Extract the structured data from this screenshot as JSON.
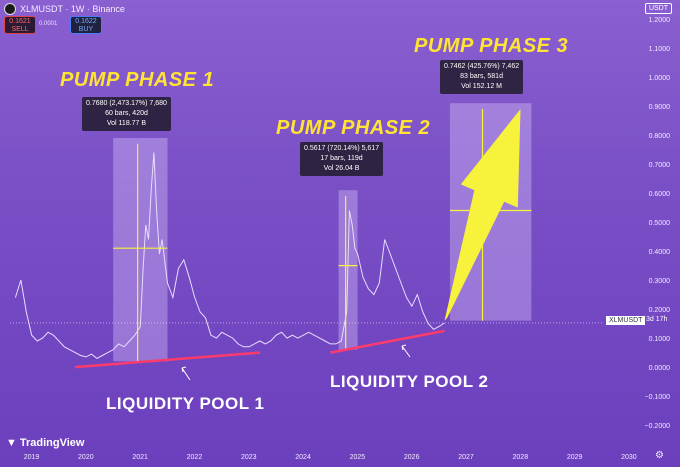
{
  "header": {
    "pair": "XLMUSDT · 1W · Binance",
    "sell_price": "0.1621",
    "sell_label": "SELL",
    "spread": "0.0001",
    "buy_price": "0.1622",
    "buy_label": "BUY",
    "currency": "USDT"
  },
  "annotations": {
    "phase1": "PUMP PHASE 1",
    "phase2": "PUMP PHASE 2",
    "phase3": "PUMP PHASE 3",
    "pool1": "LIQUIDITY POOL 1",
    "pool2": "LIQUIDITY POOL 2"
  },
  "tooltips": {
    "t1": [
      "0.7680 (2,473.17%) 7,680",
      "60 bars, 420d",
      "Vol 118.77 B"
    ],
    "t2": [
      "0.5617 (720.14%) 5,617",
      "17 bars, 119d",
      "Vol 26.04 B"
    ],
    "t3": [
      "0.7462 (425.76%) 7,462",
      "83 bars, 581d",
      "Vol 152.12 M"
    ]
  },
  "price_tag": {
    "symbol": "XLMUSDT",
    "countdown": "3d 17h"
  },
  "branding": "TradingView",
  "chart_data": {
    "type": "line",
    "x_ticks": [
      "2019",
      "2020",
      "2021",
      "2022",
      "2023",
      "2024",
      "2025",
      "2026",
      "2027",
      "2028",
      "2029",
      "2030"
    ],
    "y_ticks": [
      "1.2000",
      "1.1000",
      "1.0000",
      "0.9000",
      "0.8000",
      "0.7000",
      "0.6000",
      "0.5000",
      "0.4000",
      "0.3000",
      "0.2000",
      "0.1000",
      "0.0000",
      "−0.1000",
      "−0.2000"
    ],
    "x": [
      2018.7,
      2018.8,
      2018.9,
      2019.0,
      2019.1,
      2019.2,
      2019.3,
      2019.4,
      2019.5,
      2019.6,
      2019.7,
      2019.8,
      2019.9,
      2020.0,
      2020.1,
      2020.2,
      2020.3,
      2020.4,
      2020.5,
      2020.6,
      2020.7,
      2020.8,
      2020.9,
      2021.0,
      2021.05,
      2021.1,
      2021.15,
      2021.2,
      2021.25,
      2021.3,
      2021.35,
      2021.4,
      2021.5,
      2021.6,
      2021.7,
      2021.8,
      2021.9,
      2022.0,
      2022.1,
      2022.2,
      2022.3,
      2022.4,
      2022.5,
      2022.6,
      2022.7,
      2022.8,
      2022.9,
      2023.0,
      2023.1,
      2023.2,
      2023.3,
      2023.4,
      2023.5,
      2023.6,
      2023.7,
      2023.8,
      2023.9,
      2024.0,
      2024.1,
      2024.2,
      2024.3,
      2024.4,
      2024.5,
      2024.6,
      2024.7,
      2024.8,
      2024.85,
      2024.9,
      2024.95,
      2025.0,
      2025.1,
      2025.2,
      2025.3,
      2025.4,
      2025.5,
      2025.6,
      2025.7,
      2025.8,
      2025.9,
      2026.0,
      2026.1,
      2026.2,
      2026.3,
      2026.4,
      2026.5,
      2026.6
    ],
    "y": [
      0.25,
      0.31,
      0.2,
      0.12,
      0.1,
      0.11,
      0.13,
      0.12,
      0.1,
      0.08,
      0.07,
      0.06,
      0.05,
      0.045,
      0.055,
      0.04,
      0.05,
      0.06,
      0.07,
      0.09,
      0.08,
      0.1,
      0.12,
      0.15,
      0.35,
      0.5,
      0.45,
      0.62,
      0.75,
      0.55,
      0.4,
      0.45,
      0.3,
      0.25,
      0.35,
      0.38,
      0.32,
      0.25,
      0.2,
      0.18,
      0.12,
      0.11,
      0.13,
      0.12,
      0.11,
      0.09,
      0.08,
      0.08,
      0.09,
      0.1,
      0.09,
      0.1,
      0.12,
      0.13,
      0.11,
      0.12,
      0.11,
      0.12,
      0.13,
      0.12,
      0.11,
      0.1,
      0.09,
      0.09,
      0.1,
      0.2,
      0.55,
      0.5,
      0.42,
      0.4,
      0.32,
      0.28,
      0.26,
      0.3,
      0.45,
      0.4,
      0.35,
      0.3,
      0.25,
      0.22,
      0.26,
      0.2,
      0.16,
      0.14,
      0.15,
      0.1622
    ],
    "ylim": [
      -0.2,
      1.2
    ],
    "xlim": [
      2018.6,
      2030.2
    ],
    "series_color": "#e7ddff",
    "highlight_color": "#ffffff",
    "pool_line_color": "#ff3b6b",
    "phase_arrow_color": "#f7f23b"
  }
}
